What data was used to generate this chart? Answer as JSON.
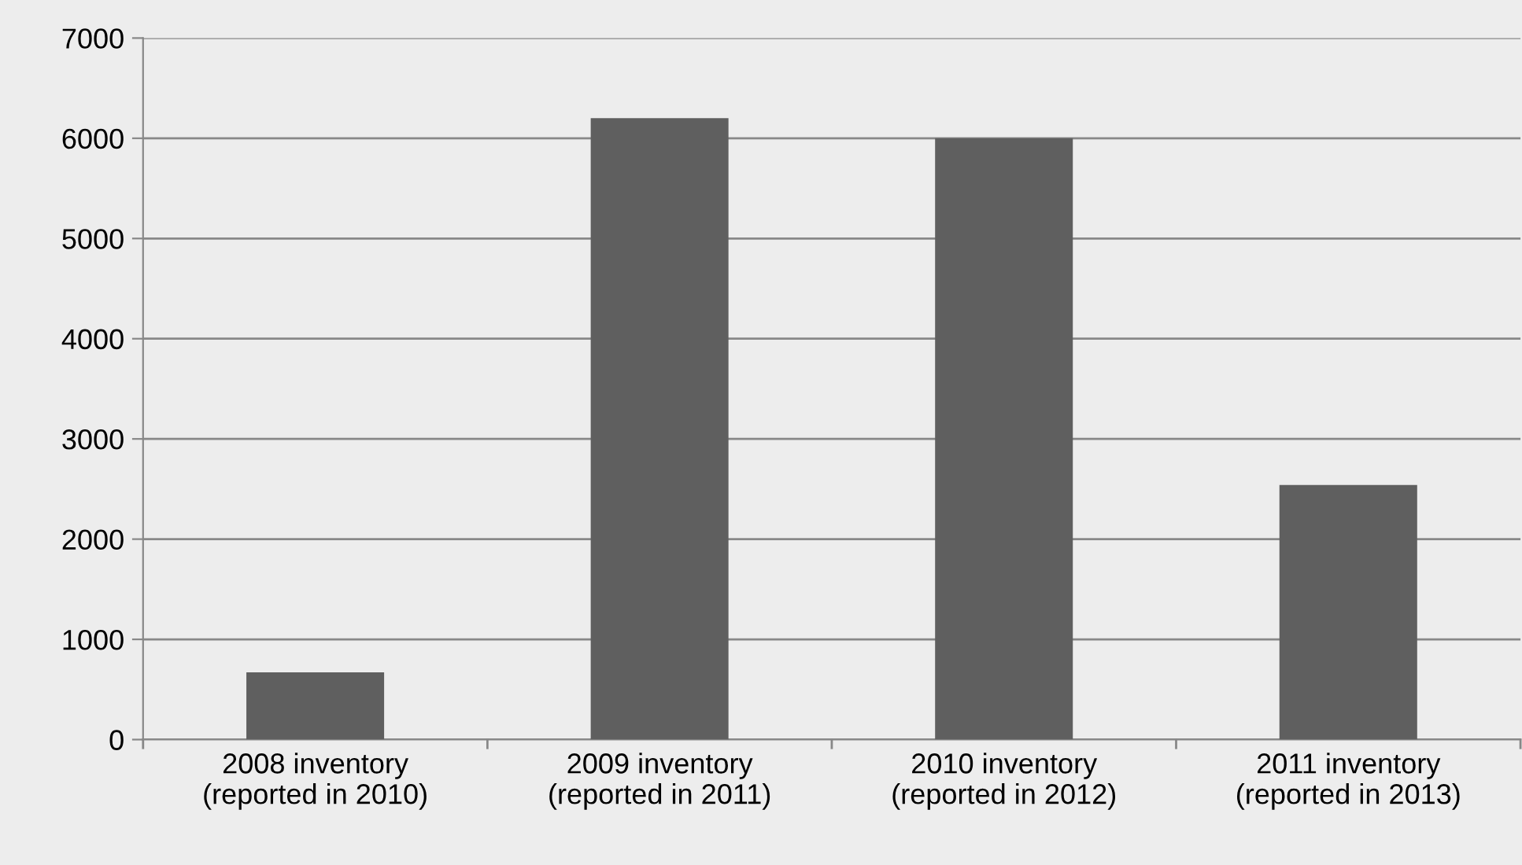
{
  "chart_data": {
    "type": "bar",
    "categories": [
      "2008 inventory\n(reported in 2010)",
      "2009 inventory\n(reported in 2011)",
      "2010 inventory\n(reported in 2012)",
      "2011 inventory\n(reported in 2013)"
    ],
    "values": [
      670,
      6200,
      6000,
      2540
    ],
    "color": "#5f5f5f",
    "ylim": [
      0,
      7000
    ],
    "yticks": [
      0,
      1000,
      2000,
      3000,
      4000,
      5000,
      6000,
      7000
    ],
    "grid": "y",
    "legend": false
  }
}
